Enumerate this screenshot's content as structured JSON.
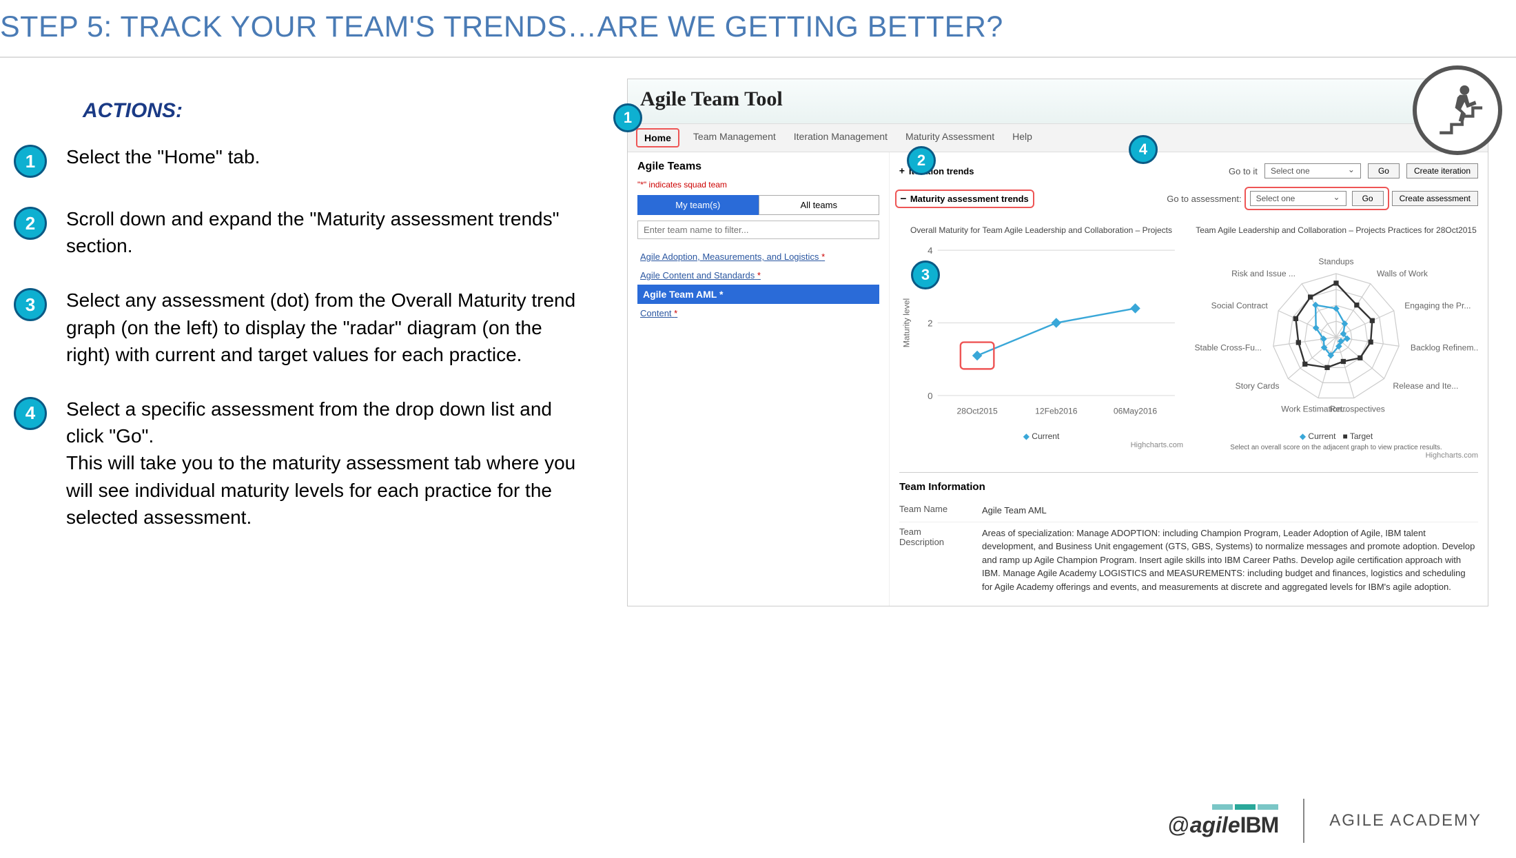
{
  "slide": {
    "title": "STEP 5: TRACK YOUR TEAM'S TRENDS…ARE WE GETTING BETTER?",
    "actions_heading": "ACTIONS:",
    "actions": [
      {
        "num": "1",
        "text": "Select the \"Home\" tab."
      },
      {
        "num": "2",
        "text": "Scroll down and expand the \"Maturity assessment trends\" section."
      },
      {
        "num": "3",
        "text": "Select any assessment (dot) from the Overall Maturity trend graph (on the left) to display the  \"radar\" diagram (on the right) with current and target values for each practice."
      },
      {
        "num": "4",
        "text": "Select a specific assessment from the drop down list and click \"Go\".\nThis will take you to the maturity assessment tab where you will see individual maturity levels for each practice for the selected assessment."
      }
    ]
  },
  "app": {
    "title": "Agile Team Tool",
    "tabs": [
      "Home",
      "Team Management",
      "Iteration Management",
      "Maturity Assessment",
      "Help"
    ],
    "active_tab": "Home",
    "sidebar": {
      "heading": "Agile Teams",
      "note_prefix": "\"*\" indicates squad team",
      "toggle": {
        "my": "My team(s)",
        "all": "All teams"
      },
      "filter_placeholder": "Enter team name to filter...",
      "teams": [
        {
          "label": "Agile Adoption, Measurements, and Logistics",
          "star": true,
          "selected": false
        },
        {
          "label": "Agile Content and Standards",
          "star": true,
          "selected": false
        },
        {
          "label": "Agile Team AML",
          "star": true,
          "selected": true
        },
        {
          "label": "Content",
          "star": true,
          "selected": false
        }
      ]
    },
    "iteration_row": {
      "expander": "+",
      "label": "Iteration trends",
      "goto": "Go to it",
      "select": "Select one",
      "go": "Go",
      "create": "Create iteration"
    },
    "maturity_row": {
      "expander": "—",
      "label": "Maturity assessment trends",
      "goto": "Go to assessment:",
      "select": "Select one",
      "go": "Go",
      "create": "Create assessment"
    },
    "line_chart": {
      "title": "Overall Maturity for Team Agile Leadership and Collaboration – Projects",
      "type": "line",
      "ylabel": "Maturity level",
      "ylim": [
        0,
        4
      ],
      "yticks": [
        0,
        2,
        4
      ],
      "x_labels": [
        "28Oct2015",
        "12Feb2016",
        "06May2016"
      ],
      "values": [
        1.1,
        2.0,
        2.4
      ],
      "line_color": "#39a7d8",
      "marker": "diamond",
      "marker_size": 6,
      "highlight_point_index": 0,
      "legend": "Current",
      "credits": "Highcharts.com"
    },
    "radar_chart": {
      "title": "Team Agile Leadership and Collaboration – Projects Practices for 28Oct2015",
      "type": "radar",
      "axes": [
        "Standups",
        "Walls of Work",
        "Engaging the Pr...",
        "Backlog Refinem...",
        "Release and Ite...",
        "Retrospectives",
        "Work Estimation...",
        "Story Cards",
        "Stable Cross-Fu...",
        "Social Contract",
        "Risk and Issue ..."
      ],
      "scale_max": 4,
      "current_values": [
        1.8,
        1.0,
        0.5,
        0.7,
        0.4,
        0.6,
        1.2,
        1.0,
        0.8,
        1.4,
        2.4
      ],
      "target_values": [
        3.4,
        2.4,
        2.5,
        2.2,
        2.0,
        1.6,
        2.0,
        2.6,
        2.4,
        2.8,
        3.0
      ],
      "current_color": "#39a7d8",
      "target_color": "#333333",
      "grid_color": "#cccccc",
      "legend_current": "Current",
      "legend_target": "Target",
      "note": "Select an overall score on the adjacent graph to view practice results.",
      "credits": "Highcharts.com"
    },
    "team_info": {
      "heading": "Team Information",
      "name_label": "Team Name",
      "name_value": "Agile Team AML",
      "desc_label": "Team Description",
      "desc_value": "Areas of specialization: Manage ADOPTION: including Champion Program, Leader Adoption of Agile, IBM talent development, and Business Unit engagement (GTS, GBS, Systems) to normalize messages and promote adoption. Develop and ramp up Agile Champion Program. Insert agile skills into IBM Career Paths. Develop agile certification approach with IBM. Manage Agile Academy LOGISTICS and MEASUREMENTS: including budget and finances, logistics and scheduling for Agile Academy offerings and events, and measurements at discrete and aggregated levels for IBM's agile adoption."
    }
  },
  "callouts": {
    "b1": "1",
    "b2": "2",
    "b3": "3",
    "b4": "4"
  },
  "footer": {
    "logo_at": "@",
    "logo_agile": "agile",
    "logo_ibm": "IBM",
    "academy": "AGILE ACADEMY",
    "bar_colors": [
      "#7ac6c6",
      "#2aa89a",
      "#7ac6c6"
    ]
  }
}
